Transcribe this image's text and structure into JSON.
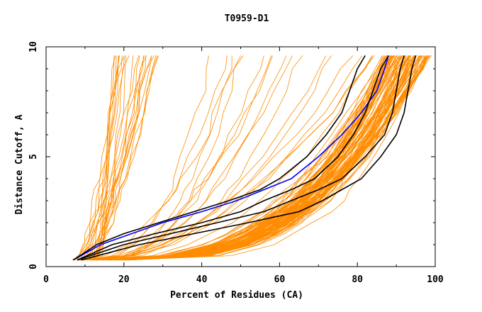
{
  "chart_data": {
    "type": "line",
    "title": "T0959-D1",
    "xlabel": "Percent of Residues (CA)",
    "ylabel": "Distance Cutoff, A",
    "xlim": [
      0,
      100
    ],
    "ylim": [
      0,
      10
    ],
    "x_ticks": [
      0,
      20,
      40,
      60,
      80,
      100
    ],
    "x_tick_labels": [
      "0",
      "20",
      "40",
      "60",
      "80",
      "100"
    ],
    "y_ticks": [
      0,
      5,
      10
    ],
    "y_tick_labels": [
      "0",
      "5",
      "10"
    ],
    "grid": false,
    "legend": "none",
    "background_color": "#ffffff",
    "colors": {
      "background_models": "#ff8c00",
      "highlight_black": "#000000",
      "highlight_blue": "#0000ff"
    },
    "y_levels": [
      0.3,
      0.5,
      1,
      1.5,
      2,
      2.5,
      3,
      3.5,
      4,
      5,
      6,
      7,
      8,
      9,
      9.6
    ],
    "background_series_groups": [
      {
        "name": "steep",
        "count": 24,
        "start": [
          7,
          3.5,
          10,
          1.5
        ],
        "end": [
          17,
          4,
          31,
          12
        ],
        "shape": [
          0.55,
          0.35
        ],
        "color": "#ff8c00"
      },
      {
        "name": "middle",
        "count": 18,
        "start": [
          7,
          3.5,
          12,
          2
        ],
        "end": [
          40,
          32,
          86,
          8
        ],
        "shape": [
          1.2,
          0.6
        ],
        "color": "#ff8c00"
      },
      {
        "name": "dense",
        "count": 100,
        "start": [
          9,
          4,
          18,
          3
        ],
        "end": [
          86,
          8,
          99,
          2.5
        ],
        "shape": [
          2.0,
          0.7
        ],
        "color": "#ff8c00"
      }
    ],
    "series": [
      {
        "color": "#0000ff",
        "points": [
          [
            7,
            0.3
          ],
          [
            14,
            1
          ],
          [
            22,
            1.5
          ],
          [
            30,
            2
          ],
          [
            40,
            2.5
          ],
          [
            49,
            3
          ],
          [
            56,
            3.5
          ],
          [
            63,
            4
          ],
          [
            70,
            5
          ],
          [
            76,
            6
          ],
          [
            81,
            7
          ],
          [
            85,
            8
          ],
          [
            87,
            9
          ],
          [
            88,
            9.6
          ]
        ]
      },
      {
        "color": "#000000",
        "points": [
          [
            7,
            0.3
          ],
          [
            13,
            1
          ],
          [
            20,
            1.5
          ],
          [
            29,
            2
          ],
          [
            38,
            2.5
          ],
          [
            47,
            3
          ],
          [
            55,
            3.5
          ],
          [
            60,
            4
          ],
          [
            67,
            5
          ],
          [
            72,
            6
          ],
          [
            76,
            7
          ],
          [
            78,
            8
          ],
          [
            80,
            9
          ],
          [
            82,
            9.6
          ]
        ]
      },
      {
        "color": "#000000",
        "points": [
          [
            8,
            0.3
          ],
          [
            17,
            1
          ],
          [
            28,
            1.5
          ],
          [
            40,
            2
          ],
          [
            50,
            2.5
          ],
          [
            56,
            3
          ],
          [
            63,
            3.5
          ],
          [
            69,
            4
          ],
          [
            75,
            5
          ],
          [
            79,
            6
          ],
          [
            82,
            7
          ],
          [
            84,
            8
          ],
          [
            86,
            9
          ],
          [
            88,
            9.6
          ]
        ]
      },
      {
        "color": "#000000",
        "points": [
          [
            8,
            0.3
          ],
          [
            20,
            1
          ],
          [
            32,
            1.5
          ],
          [
            44,
            2
          ],
          [
            56,
            2.5
          ],
          [
            63,
            3
          ],
          [
            70,
            3.5
          ],
          [
            76,
            4
          ],
          [
            82,
            5
          ],
          [
            87,
            6
          ],
          [
            89,
            7
          ],
          [
            90,
            8
          ],
          [
            91,
            9
          ],
          [
            92,
            9.6
          ]
        ]
      },
      {
        "color": "#000000",
        "points": [
          [
            9,
            0.3
          ],
          [
            24,
            1
          ],
          [
            38,
            1.5
          ],
          [
            52,
            2
          ],
          [
            65,
            2.5
          ],
          [
            71,
            3
          ],
          [
            76,
            3.5
          ],
          [
            81,
            4
          ],
          [
            86,
            5
          ],
          [
            90,
            6
          ],
          [
            92,
            7
          ],
          [
            93,
            8
          ],
          [
            94,
            9
          ],
          [
            95,
            9.6
          ]
        ]
      }
    ]
  }
}
